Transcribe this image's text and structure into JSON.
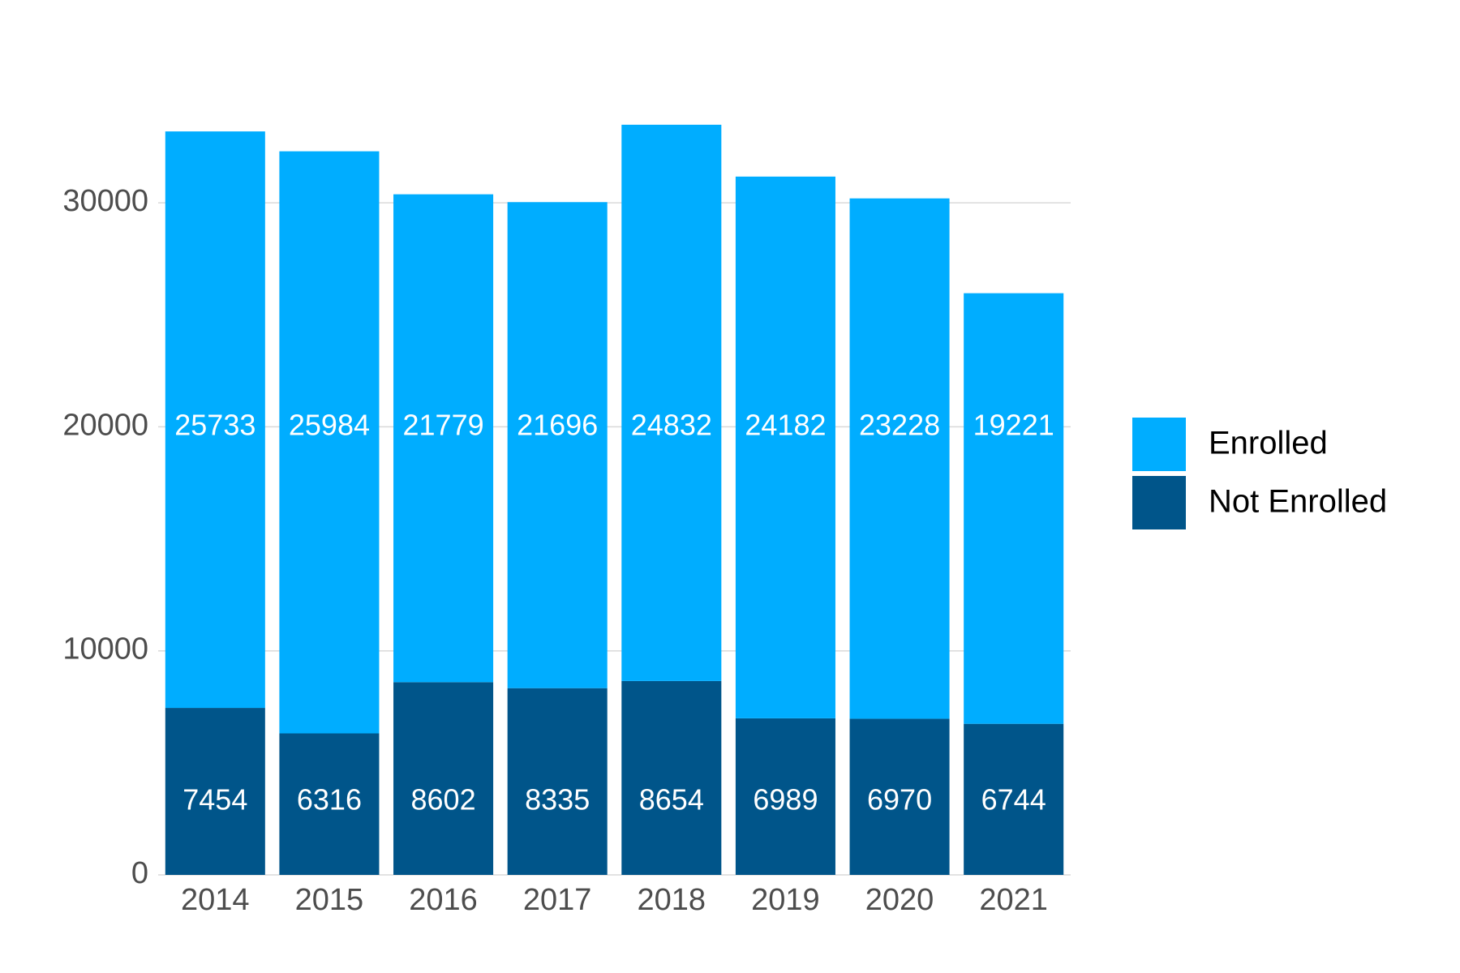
{
  "chart_data": {
    "type": "stacked_bar",
    "categories": [
      "2014",
      "2015",
      "2016",
      "2017",
      "2018",
      "2019",
      "2020",
      "2021"
    ],
    "series": [
      {
        "name": "Not Enrolled",
        "color": "#00558a",
        "values": [
          7454,
          6316,
          8602,
          8335,
          8654,
          6989,
          6970,
          6744
        ]
      },
      {
        "name": "Enrolled",
        "color": "#00adff",
        "values": [
          25733,
          25984,
          21779,
          21696,
          24832,
          24182,
          23228,
          19221
        ]
      }
    ],
    "ylim": [
      0,
      35000
    ],
    "yticks": [
      0,
      10000,
      20000,
      30000
    ],
    "grid": true,
    "legend": "right"
  }
}
